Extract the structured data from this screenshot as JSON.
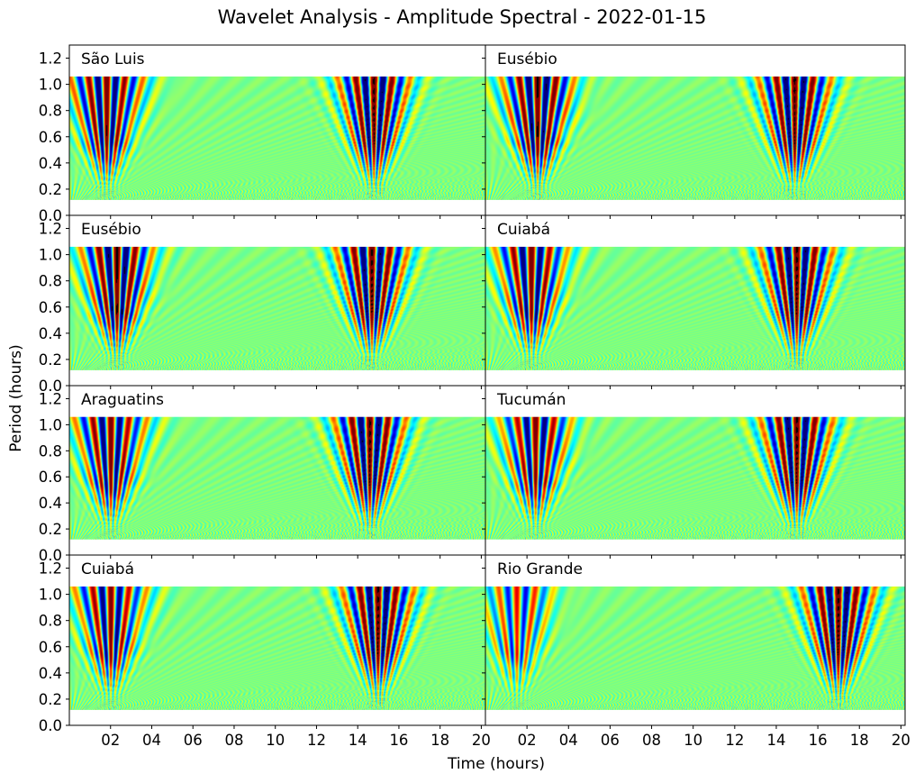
{
  "title": "Wavelet Analysis - Amplitude Spectral - 2022-01-15",
  "xlabel": "Time (hours)",
  "ylabel": "Period (hours)",
  "colormap": "jet",
  "chart_data": {
    "type": "heatmap",
    "layout": {
      "rows": 4,
      "cols": 2,
      "sharey": true,
      "sharex": true
    },
    "xlim": [
      0,
      20.2
    ],
    "ylim": [
      0,
      1.3
    ],
    "x_ticks": [
      2,
      4,
      6,
      8,
      10,
      12,
      14,
      16,
      18,
      20
    ],
    "x_tick_labels": [
      "02",
      "04",
      "06",
      "08",
      "10",
      "12",
      "14",
      "16",
      "18",
      "20"
    ],
    "y_ticks": [
      0.0,
      0.2,
      0.4,
      0.6,
      0.8,
      1.0,
      1.2
    ],
    "y_tick_labels": [
      "0.0",
      "0.2",
      "0.4",
      "0.6",
      "0.8",
      "1.0",
      "1.2"
    ],
    "period_range_shown": [
      0.12,
      1.06
    ],
    "panels": [
      {
        "station": "São Luis",
        "bursts": [
          {
            "t": 1.8,
            "amp": 0.95
          },
          {
            "t": 14.8,
            "amp": 1.0
          }
        ]
      },
      {
        "station": "Eusébio",
        "bursts": [
          {
            "t": 2.5,
            "amp": 1.0
          },
          {
            "t": 14.9,
            "amp": 1.0
          }
        ]
      },
      {
        "station": "Eusébio",
        "bursts": [
          {
            "t": 2.3,
            "amp": 1.0
          },
          {
            "t": 14.7,
            "amp": 1.0
          }
        ]
      },
      {
        "station": "Cuiabá",
        "bursts": [
          {
            "t": 2.2,
            "amp": 0.9
          },
          {
            "t": 15.0,
            "amp": 1.0
          }
        ]
      },
      {
        "station": "Araguatins",
        "bursts": [
          {
            "t": 2.0,
            "amp": 0.9
          },
          {
            "t": 14.6,
            "amp": 1.0
          }
        ]
      },
      {
        "station": "Tucumán",
        "bursts": [
          {
            "t": 2.4,
            "amp": 0.85
          },
          {
            "t": 15.0,
            "amp": 1.0
          }
        ]
      },
      {
        "station": "Cuiabá",
        "bursts": [
          {
            "t": 2.0,
            "amp": 0.85
          },
          {
            "t": 15.0,
            "amp": 1.0
          }
        ]
      },
      {
        "station": "Rio Grande",
        "bursts": [
          {
            "t": 1.5,
            "amp": 0.6
          },
          {
            "t": 17.0,
            "amp": 1.0
          }
        ]
      }
    ]
  }
}
